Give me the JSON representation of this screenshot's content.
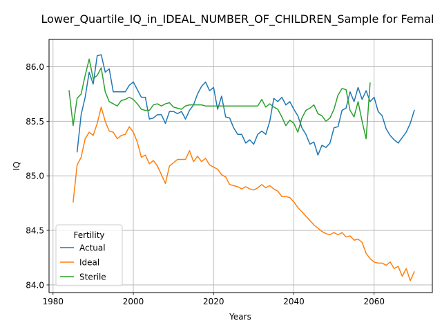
{
  "chart_data": {
    "type": "line",
    "title": "Lower_Quartile_IQ_in_IDEAL_NUMBER_OF_CHILDREN_Sample for Femal",
    "xlabel": "Years",
    "ylabel": "IQ",
    "xlim": [
      1979,
      2074.5
    ],
    "ylim": [
      83.93,
      86.25
    ],
    "xticks": [
      1980,
      2000,
      2020,
      2040,
      2060
    ],
    "yticks": [
      84.0,
      84.5,
      85.0,
      85.5,
      86.0
    ],
    "xtick_labels": [
      "1980",
      "2000",
      "2020",
      "2040",
      "2060"
    ],
    "ytick_labels": [
      "84.0",
      "84.5",
      "85.0",
      "85.5",
      "86.0"
    ],
    "grid": true,
    "legend": {
      "title": "Fertility",
      "placement": "bottom-left"
    },
    "series": [
      {
        "name": "Actual",
        "color": "#1f77b4",
        "x": [
          1986,
          1987,
          1988,
          1989,
          1990,
          1991,
          1992,
          1993,
          1994,
          1995,
          1996,
          1997,
          1998,
          1999,
          2000,
          2001,
          2002,
          2003,
          2004,
          2005,
          2006,
          2007,
          2008,
          2009,
          2010,
          2011,
          2012,
          2013,
          2014,
          2015,
          2016,
          2017,
          2018,
          2019,
          2020,
          2021,
          2022,
          2023,
          2024,
          2025,
          2026,
          2027,
          2028,
          2029,
          2030,
          2031,
          2032,
          2033,
          2034,
          2035,
          2036,
          2037,
          2038,
          2039,
          2040,
          2041,
          2042,
          2043,
          2044,
          2045,
          2046,
          2047,
          2048,
          2049,
          2050,
          2051,
          2052,
          2053,
          2054,
          2055,
          2056,
          2057,
          2058,
          2059,
          2060,
          2061,
          2062,
          2063,
          2064,
          2065,
          2066,
          2067,
          2068,
          2069,
          2070
        ],
        "values": [
          85.22,
          85.56,
          85.72,
          85.95,
          85.84,
          86.1,
          86.11,
          85.95,
          85.98,
          85.77,
          85.77,
          85.77,
          85.77,
          85.83,
          85.86,
          85.79,
          85.72,
          85.72,
          85.52,
          85.53,
          85.56,
          85.56,
          85.48,
          85.59,
          85.59,
          85.57,
          85.59,
          85.52,
          85.6,
          85.65,
          85.75,
          85.82,
          85.86,
          85.78,
          85.81,
          85.61,
          85.73,
          85.54,
          85.53,
          85.44,
          85.38,
          85.38,
          85.3,
          85.33,
          85.29,
          85.38,
          85.41,
          85.38,
          85.5,
          85.71,
          85.68,
          85.72,
          85.65,
          85.68,
          85.61,
          85.55,
          85.44,
          85.38,
          85.29,
          85.31,
          85.19,
          85.28,
          85.26,
          85.3,
          85.44,
          85.45,
          85.6,
          85.62,
          85.77,
          85.68,
          85.81,
          85.7,
          85.78,
          85.68,
          85.72,
          85.59,
          85.55,
          85.43,
          85.37,
          85.33,
          85.3,
          85.35,
          85.4,
          85.48,
          85.6
        ]
      },
      {
        "name": "Ideal",
        "color": "#ff7f0e",
        "x": [
          1985,
          1986,
          1987,
          1988,
          1989,
          1990,
          1991,
          1992,
          1993,
          1994,
          1995,
          1996,
          1997,
          1998,
          1999,
          2000,
          2001,
          2002,
          2003,
          2004,
          2005,
          2006,
          2007,
          2008,
          2009,
          2010,
          2011,
          2012,
          2013,
          2014,
          2015,
          2016,
          2017,
          2018,
          2019,
          2020,
          2021,
          2022,
          2023,
          2024,
          2025,
          2026,
          2027,
          2028,
          2029,
          2030,
          2031,
          2032,
          2033,
          2034,
          2035,
          2036,
          2037,
          2038,
          2039,
          2040,
          2041,
          2042,
          2043,
          2044,
          2045,
          2046,
          2047,
          2048,
          2049,
          2050,
          2051,
          2052,
          2053,
          2054,
          2055,
          2056,
          2057,
          2058,
          2059,
          2060,
          2061,
          2062,
          2063,
          2064,
          2065,
          2066,
          2067,
          2068,
          2069,
          2070
        ],
        "values": [
          84.76,
          85.1,
          85.17,
          85.34,
          85.4,
          85.37,
          85.48,
          85.63,
          85.5,
          85.41,
          85.4,
          85.34,
          85.37,
          85.38,
          85.45,
          85.4,
          85.31,
          85.17,
          85.19,
          85.11,
          85.14,
          85.09,
          85.01,
          84.93,
          85.09,
          85.12,
          85.15,
          85.15,
          85.15,
          85.23,
          85.13,
          85.18,
          85.13,
          85.16,
          85.1,
          85.08,
          85.06,
          85.01,
          84.99,
          84.92,
          84.91,
          84.9,
          84.88,
          84.9,
          84.88,
          84.87,
          84.89,
          84.92,
          84.89,
          84.91,
          84.88,
          84.86,
          84.81,
          84.81,
          84.8,
          84.76,
          84.71,
          84.67,
          84.63,
          84.59,
          84.55,
          84.52,
          84.49,
          84.47,
          84.46,
          84.48,
          84.46,
          84.48,
          84.44,
          84.45,
          84.41,
          84.42,
          84.39,
          84.29,
          84.24,
          84.21,
          84.2,
          84.2,
          84.18,
          84.21,
          84.15,
          84.17,
          84.08,
          84.15,
          84.04,
          84.12
        ]
      },
      {
        "name": "Sterile",
        "color": "#2ca02c",
        "x": [
          1984,
          1985,
          1986,
          1987,
          1988,
          1989,
          1990,
          1991,
          1992,
          1993,
          1994,
          1995,
          1996,
          1997,
          1998,
          1999,
          2000,
          2001,
          2002,
          2003,
          2004,
          2005,
          2006,
          2007,
          2008,
          2009,
          2010,
          2011,
          2012,
          2013,
          2014,
          2015,
          2016,
          2017,
          2018,
          2019,
          2020,
          2021,
          2022,
          2023,
          2024,
          2025,
          2026,
          2027,
          2028,
          2029,
          2030,
          2031,
          2032,
          2033,
          2034,
          2035,
          2036,
          2037,
          2038,
          2039,
          2040,
          2041,
          2042,
          2043,
          2044,
          2045,
          2046,
          2047,
          2048,
          2049,
          2050,
          2051,
          2052,
          2053,
          2054,
          2055,
          2056,
          2057,
          2058,
          2059
        ],
        "values": [
          85.78,
          85.46,
          85.71,
          85.75,
          85.92,
          86.07,
          85.89,
          85.92,
          85.99,
          85.77,
          85.68,
          85.66,
          85.64,
          85.69,
          85.7,
          85.72,
          85.7,
          85.66,
          85.61,
          85.6,
          85.6,
          85.65,
          85.66,
          85.64,
          85.66,
          85.67,
          85.63,
          85.62,
          85.61,
          85.64,
          85.65,
          85.65,
          85.65,
          85.65,
          85.64,
          85.64,
          85.64,
          85.64,
          85.64,
          85.64,
          85.64,
          85.64,
          85.64,
          85.64,
          85.64,
          85.64,
          85.64,
          85.64,
          85.7,
          85.63,
          85.66,
          85.63,
          85.61,
          85.54,
          85.46,
          85.51,
          85.48,
          85.4,
          85.53,
          85.6,
          85.62,
          85.65,
          85.57,
          85.55,
          85.5,
          85.53,
          85.61,
          85.74,
          85.8,
          85.79,
          85.6,
          85.54,
          85.68,
          85.5,
          85.34,
          85.85
        ]
      }
    ]
  }
}
